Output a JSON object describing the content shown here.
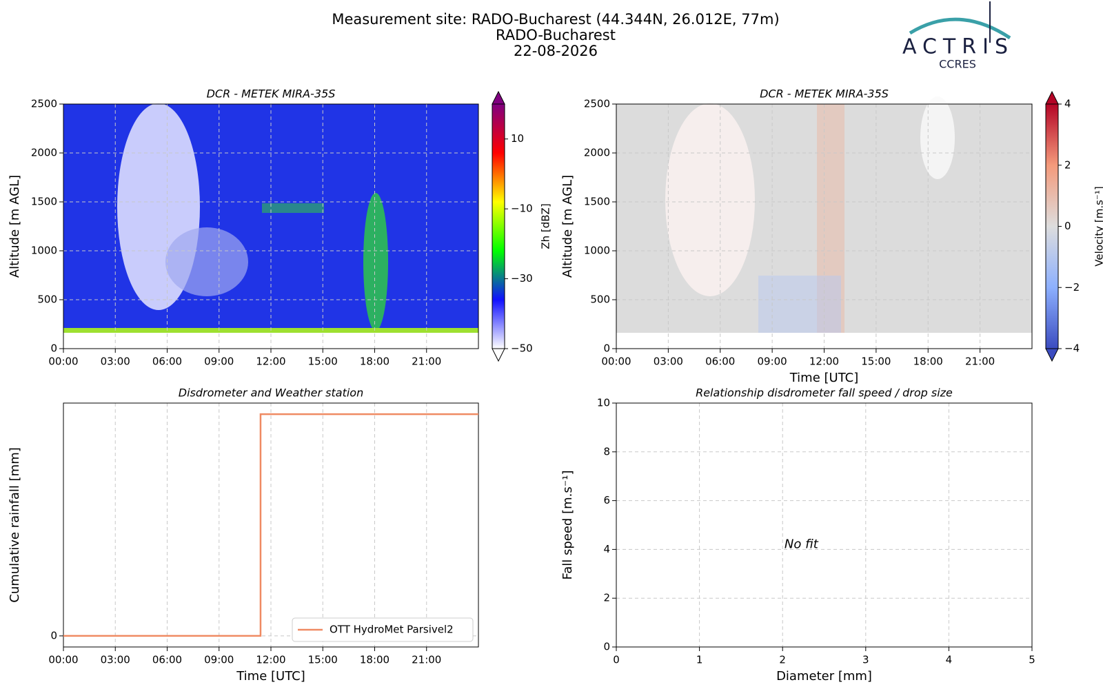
{
  "figure": {
    "title": [
      "Measurement site: RADO-Bucharest (44.344N, 26.012E, 77m)",
      "RADO-Bucharest",
      "22-08-2026"
    ]
  },
  "logo": {
    "name": "ACTRIS",
    "subtitle": "CCRES"
  },
  "chart_data": [
    {
      "type": "heatmap",
      "title": "DCR - METEK MIRA-35S",
      "ylabel": "Altitude [m AGL]",
      "xlim": [
        0,
        24
      ],
      "xticks": [
        {
          "value": 0,
          "label": "00:00"
        },
        {
          "value": 3,
          "label": "03:00"
        },
        {
          "value": 6,
          "label": "06:00"
        },
        {
          "value": 9,
          "label": "09:00"
        },
        {
          "value": 12,
          "label": "12:00"
        },
        {
          "value": 15,
          "label": "15:00"
        },
        {
          "value": 18,
          "label": "18:00"
        },
        {
          "value": 21,
          "label": "21:00"
        }
      ],
      "ylim": [
        0,
        2500
      ],
      "yticks": [
        0,
        500,
        1000,
        1500,
        2000,
        2500
      ],
      "grid": true,
      "colorbar": {
        "label": "Zh [dBZ]",
        "lim": [
          -50,
          20
        ],
        "ticks": [
          {
            "value": -50,
            "label": "−50"
          },
          {
            "value": -30,
            "label": "−30"
          },
          {
            "value": -10,
            "label": "−10"
          },
          10
        ],
        "colors": [
          "#ffffff",
          "#1010ff",
          "#00ff00",
          "#ffff00",
          "#ff0000",
          "#800080"
        ]
      }
    },
    {
      "type": "heatmap",
      "title": "DCR - METEK MIRA-35S",
      "ylabel": "Altitude [m AGL]",
      "xlabel": "Time [UTC]",
      "xlim": [
        0,
        24
      ],
      "xticks": [
        {
          "value": 0,
          "label": "00:00"
        },
        {
          "value": 3,
          "label": "03:00"
        },
        {
          "value": 6,
          "label": "06:00"
        },
        {
          "value": 9,
          "label": "09:00"
        },
        {
          "value": 12,
          "label": "12:00"
        },
        {
          "value": 15,
          "label": "15:00"
        },
        {
          "value": 18,
          "label": "18:00"
        },
        {
          "value": 21,
          "label": "21:00"
        }
      ],
      "ylim": [
        0,
        2500
      ],
      "yticks": [
        0,
        500,
        1000,
        1500,
        2000,
        2500
      ],
      "grid": true,
      "colorbar": {
        "label": "Velocity [m.s⁻¹]",
        "lim": [
          -4,
          4
        ],
        "ticks": [
          {
            "value": -4,
            "label": "−4"
          },
          {
            "value": -2,
            "label": "−2"
          },
          0,
          2,
          4
        ],
        "colors": [
          "#3b4cc0",
          "#8db0fe",
          "#dddddd",
          "#f49a7b",
          "#b40426"
        ]
      }
    },
    {
      "type": "line",
      "title": "Disdrometer and Weather station",
      "ylabel": "Cumulative rainfall [mm]",
      "xlabel": "Time [UTC]",
      "xlim": [
        0,
        24
      ],
      "xticks": [
        {
          "value": 0,
          "label": "00:00"
        },
        {
          "value": 3,
          "label": "03:00"
        },
        {
          "value": 6,
          "label": "06:00"
        },
        {
          "value": 9,
          "label": "09:00"
        },
        {
          "value": 12,
          "label": "12:00"
        },
        {
          "value": 15,
          "label": "15:00"
        },
        {
          "value": 18,
          "label": "18:00"
        },
        {
          "value": 21,
          "label": "21:00"
        }
      ],
      "ylim": [
        -0.05,
        1.05
      ],
      "yticks": [
        0
      ],
      "grid": true,
      "legend": "lower right",
      "x": [
        0,
        11.4,
        11.4,
        24
      ],
      "series": [
        {
          "name": "OTT HydroMet Parsivel2",
          "color": "#ef8a62",
          "values": [
            0,
            0,
            1,
            1
          ]
        }
      ]
    },
    {
      "type": "scatter",
      "title": "Relationship disdrometer fall speed / drop size",
      "ylabel": "Fall speed [m.s⁻¹]",
      "xlabel": "Diameter [mm]",
      "xlim": [
        0,
        5
      ],
      "xticks": [
        0,
        1,
        2,
        3,
        4,
        5
      ],
      "ylim": [
        0,
        10
      ],
      "yticks": [
        0,
        2,
        4,
        6,
        8,
        10
      ],
      "grid": true,
      "annotation": "No fit"
    }
  ]
}
